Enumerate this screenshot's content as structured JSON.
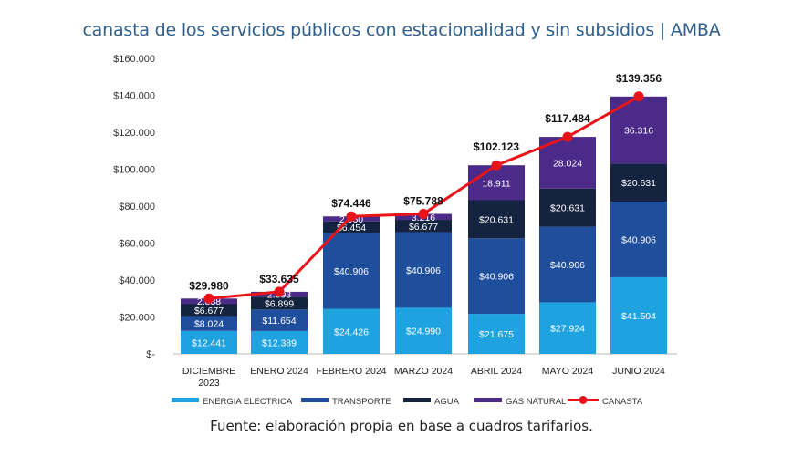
{
  "chart_data": {
    "type": "bar",
    "stacked": true,
    "title": "canasta de los servicios públicos con estacionalidad y sin subsidios | AMBA",
    "source": "Fuente: elaboración propia en base a cuadros tarifarios.",
    "categories": [
      [
        "DICIEMBRE",
        "2023"
      ],
      [
        "ENERO 2024"
      ],
      [
        "FEBRERO 2024"
      ],
      [
        "MARZO 2024"
      ],
      [
        "ABRIL 2024"
      ],
      [
        "MAYO 2024"
      ],
      [
        "JUNIO 2024"
      ]
    ],
    "ylim": [
      0,
      160000
    ],
    "yticks": [
      0,
      20000,
      40000,
      60000,
      80000,
      100000,
      120000,
      140000,
      160000
    ],
    "ytick_labels": [
      "$-",
      "$20.000",
      "$40.000",
      "$60.000",
      "$80.000",
      "$100.000",
      "$120.000",
      "$140.000",
      "$160.000"
    ],
    "grid": false,
    "legend_placement": "bottom",
    "series": [
      {
        "name": "ENERGIA ELECTRICA",
        "color": "#1fa3e0",
        "values": [
          12441,
          12389,
          24426,
          24990,
          21675,
          27924,
          41504
        ],
        "labels": [
          "$12.441",
          "$12.389",
          "$24.426",
          "$24.990",
          "$21.675",
          "$27.924",
          "$41.504"
        ]
      },
      {
        "name": "TRANSPORTE",
        "color": "#1f4e9c",
        "values": [
          8024,
          11654,
          40906,
          40906,
          40906,
          40906,
          40906
        ],
        "labels": [
          "$8.024",
          "$11.654",
          "$40.906",
          "$40.906",
          "$40.906",
          "$40.906",
          "$40.906"
        ]
      },
      {
        "name": "AGUA",
        "color": "#14233f",
        "values": [
          6677,
          6899,
          6454,
          6677,
          20631,
          20631,
          20631
        ],
        "labels": [
          "$6.677",
          "$6.899",
          "$6.454",
          "$6.677",
          "$20.631",
          "$20.631",
          "$20.631"
        ]
      },
      {
        "name": "GAS NATURAL",
        "color": "#4b2a8a",
        "values": [
          2838,
          2693,
          2660,
          3216,
          18911,
          28024,
          36316
        ],
        "labels": [
          "2.838",
          "2.693",
          "2.660",
          "3.216",
          "18.911",
          "28.024",
          "36.316"
        ]
      }
    ],
    "line": {
      "name": "CANASTA",
      "color": "#e8141a",
      "type": "line",
      "values": [
        29980,
        33635,
        74446,
        75788,
        102123,
        117484,
        139356
      ],
      "labels": [
        "$29.980",
        "$33.635",
        "$74.446",
        "$75.788",
        "$102.123",
        "$117.484",
        "$139.356"
      ]
    }
  }
}
